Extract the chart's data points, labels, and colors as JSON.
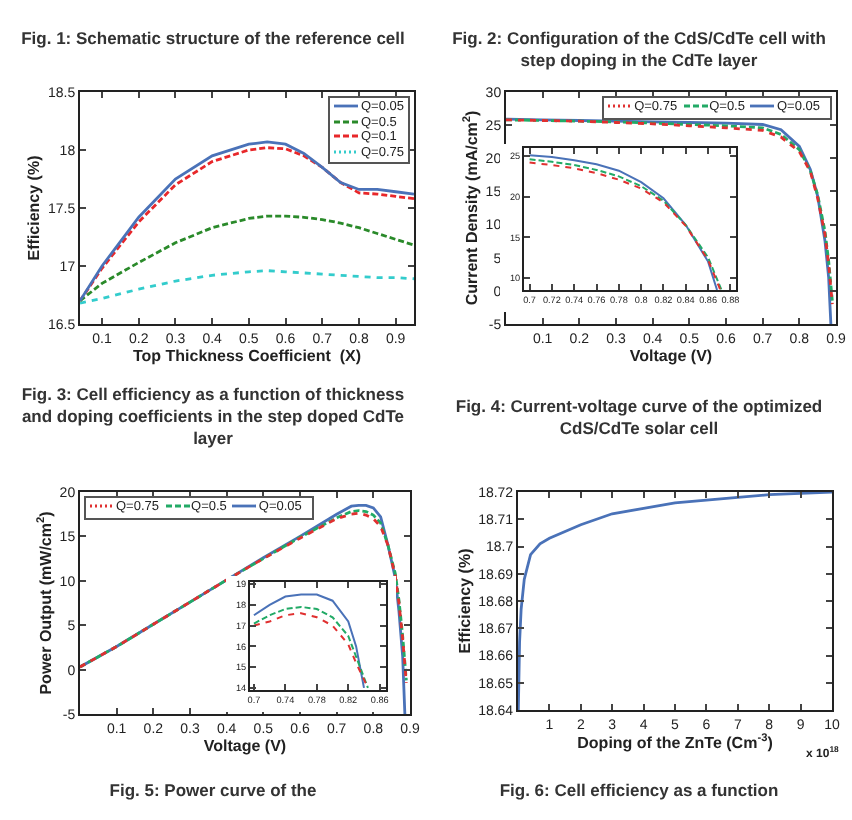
{
  "chart_data": [
    {
      "type": "other",
      "annotations": [
        "Fig. 1: Schematic structure of the reference cell",
        "Fig. 2: Configuration of the CdS/CdTe cell with step doping in the CdTe layer"
      ]
    },
    {
      "type": "line",
      "xlabel": "Top Thickness Coefficient  (X)",
      "ylabel": "Efficiency (%)",
      "xlim": [
        0.04,
        0.95
      ],
      "xticks": [
        0.1,
        0.2,
        0.3,
        0.4,
        0.5,
        0.6,
        0.7,
        0.8,
        0.9
      ],
      "ylim": [
        16.5,
        18.5
      ],
      "yticks": [
        16.5,
        17,
        17.5,
        18,
        18.5
      ],
      "legend": "top right",
      "x": [
        0.04,
        0.1,
        0.2,
        0.3,
        0.4,
        0.5,
        0.55,
        0.6,
        0.65,
        0.7,
        0.75,
        0.8,
        0.85,
        0.9,
        0.95
      ],
      "series": [
        {
          "name": "Q=0.05",
          "color": "#4a72b8",
          "line_style": "solid",
          "values": [
            16.7,
            17.0,
            17.42,
            17.75,
            17.95,
            18.05,
            18.07,
            18.05,
            17.97,
            17.85,
            17.72,
            17.66,
            17.66,
            17.64,
            17.62
          ]
        },
        {
          "name": "Q=0.5",
          "color": "#2a8a2a",
          "line_style": "dashed",
          "values": [
            16.7,
            16.85,
            17.03,
            17.2,
            17.33,
            17.41,
            17.43,
            17.43,
            17.42,
            17.4,
            17.37,
            17.33,
            17.28,
            17.23,
            17.18
          ]
        },
        {
          "name": "Q=0.1",
          "color": "#e8272a",
          "line_style": "dashed",
          "values": [
            16.7,
            16.98,
            17.38,
            17.7,
            17.9,
            18.0,
            18.02,
            18.01,
            17.95,
            17.85,
            17.72,
            17.63,
            17.62,
            17.6,
            17.58
          ]
        },
        {
          "name": "Q=0.75",
          "color": "#33cccc",
          "line_style": "dotted",
          "values": [
            16.68,
            16.72,
            16.8,
            16.87,
            16.92,
            16.95,
            16.96,
            16.95,
            16.94,
            16.93,
            16.92,
            16.91,
            16.9,
            16.9,
            16.89
          ]
        }
      ],
      "annotations": [
        "Fig. 3: Cell efficiency as a function of thickness and doping coefficients in the step doped CdTe layer"
      ]
    },
    {
      "type": "line",
      "xlabel": "Voltage (V)",
      "ylabel": "Current Density (mA/cm$^{2}$)",
      "xlim": [
        0,
        0.9
      ],
      "xticks": [
        0.1,
        0.2,
        0.3,
        0.4,
        0.5,
        0.6,
        0.7,
        0.8,
        0.9
      ],
      "ylim": [
        -5,
        30
      ],
      "yticks": [
        -5,
        0,
        5,
        10,
        15,
        20,
        25,
        30
      ],
      "legend": "top right",
      "series": [
        {
          "name": "Q=0.75",
          "color": "#e03030",
          "line_style": "dotted",
          "x": [
            0,
            0.1,
            0.2,
            0.3,
            0.4,
            0.5,
            0.6,
            0.7,
            0.75,
            0.8,
            0.83,
            0.85,
            0.87,
            0.88,
            0.89
          ],
          "values": [
            25.8,
            25.7,
            25.6,
            25.4,
            25.2,
            24.9,
            24.6,
            24.2,
            23.2,
            21.0,
            18.0,
            14.0,
            8.5,
            4.0,
            -2
          ]
        },
        {
          "name": "Q=0.5",
          "color": "#22aa66",
          "line_style": "dashed",
          "x": [
            0,
            0.1,
            0.2,
            0.3,
            0.4,
            0.5,
            0.6,
            0.7,
            0.75,
            0.8,
            0.83,
            0.85,
            0.87,
            0.88,
            0.89
          ],
          "values": [
            25.8,
            25.7,
            25.6,
            25.5,
            25.3,
            25.1,
            24.9,
            24.6,
            23.6,
            21.3,
            18.1,
            14.5,
            9.0,
            4.5,
            -1.5
          ]
        },
        {
          "name": "Q=0.05",
          "color": "#4a72b8",
          "line_style": "solid",
          "x": [
            0,
            0.1,
            0.2,
            0.3,
            0.4,
            0.5,
            0.6,
            0.7,
            0.75,
            0.8,
            0.83,
            0.85,
            0.87,
            0.88,
            0.886
          ],
          "values": [
            25.9,
            25.8,
            25.7,
            25.6,
            25.5,
            25.4,
            25.3,
            25.1,
            24.3,
            21.8,
            18.3,
            14.3,
            7.5,
            2.0,
            -5
          ]
        }
      ],
      "annotations": [
        "Fig. 4: Current-voltage curve of the optimized CdS/CdTe solar cell"
      ]
    },
    {
      "type": "line",
      "xlim": [
        0.695,
        0.885
      ],
      "xticks": [
        0.7,
        0.72,
        0.74,
        0.76,
        0.78,
        0.8,
        0.82,
        0.84,
        0.86,
        0.88
      ],
      "ylim": [
        8.5,
        26
      ],
      "yticks": [
        10,
        15,
        20,
        25
      ],
      "series": [
        {
          "color": "#e03030",
          "line_style": "dotted",
          "x": [
            0.7,
            0.72,
            0.74,
            0.76,
            0.78,
            0.8,
            0.82,
            0.84,
            0.86,
            0.871
          ],
          "values": [
            24.2,
            23.9,
            23.5,
            22.9,
            22.1,
            21.0,
            19.3,
            16.4,
            12.2,
            8.5
          ]
        },
        {
          "color": "#22aa66",
          "line_style": "dashed",
          "x": [
            0.7,
            0.72,
            0.74,
            0.76,
            0.78,
            0.8,
            0.82,
            0.84,
            0.86,
            0.872
          ],
          "values": [
            24.6,
            24.3,
            23.9,
            23.3,
            22.5,
            21.3,
            19.5,
            16.5,
            12.5,
            8.5
          ]
        },
        {
          "color": "#4a72b8",
          "line_style": "solid",
          "x": [
            0.7,
            0.72,
            0.74,
            0.76,
            0.78,
            0.8,
            0.82,
            0.84,
            0.86,
            0.868
          ],
          "values": [
            25.1,
            24.9,
            24.5,
            24.0,
            23.2,
            21.8,
            19.8,
            16.5,
            12.0,
            8.5
          ]
        }
      ]
    },
    {
      "type": "line",
      "xlabel": "Voltage (V)",
      "ylabel": "Power Output (mW/cm$^{2}$)",
      "xlim": [
        0,
        0.9
      ],
      "xticks": [
        0.1,
        0.2,
        0.3,
        0.4,
        0.5,
        0.6,
        0.7,
        0.8,
        0.9
      ],
      "ylim": [
        -5,
        20
      ],
      "yticks": [
        -5,
        0,
        5,
        10,
        15,
        20
      ],
      "legend": "top left",
      "series": [
        {
          "name": "Q=0.75",
          "color": "#e03030",
          "line_style": "dotted",
          "x": [
            0,
            0.1,
            0.2,
            0.3,
            0.4,
            0.5,
            0.6,
            0.7,
            0.74,
            0.76,
            0.78,
            0.8,
            0.82,
            0.84,
            0.86,
            0.87,
            0.88,
            0.89
          ],
          "values": [
            0.3,
            2.6,
            5.1,
            7.6,
            10.1,
            12.5,
            14.8,
            17.0,
            17.5,
            17.6,
            17.4,
            17.0,
            16.1,
            14.0,
            10.5,
            7.5,
            3.5,
            -1.5
          ]
        },
        {
          "name": "Q=0.5",
          "color": "#22aa66",
          "line_style": "dashed",
          "x": [
            0,
            0.1,
            0.2,
            0.3,
            0.4,
            0.5,
            0.6,
            0.7,
            0.74,
            0.76,
            0.78,
            0.8,
            0.82,
            0.84,
            0.86,
            0.87,
            0.88,
            0.89
          ],
          "values": [
            0.3,
            2.6,
            5.1,
            7.6,
            10.1,
            12.5,
            14.9,
            17.1,
            17.8,
            17.9,
            17.8,
            17.4,
            16.5,
            14.0,
            10.8,
            7.8,
            3.8,
            -1.2
          ]
        },
        {
          "name": "Q=0.05",
          "color": "#4a72b8",
          "line_style": "solid",
          "x": [
            0,
            0.1,
            0.2,
            0.3,
            0.4,
            0.5,
            0.6,
            0.7,
            0.74,
            0.76,
            0.78,
            0.8,
            0.82,
            0.84,
            0.86,
            0.87,
            0.88,
            0.886
          ],
          "values": [
            0.3,
            2.6,
            5.1,
            7.6,
            10.1,
            12.6,
            15.0,
            17.5,
            18.4,
            18.5,
            18.5,
            18.2,
            17.2,
            14.0,
            10.3,
            6.5,
            1.5,
            -5
          ]
        }
      ],
      "annotations": [
        "Fig. 5: Power curve of the"
      ]
    },
    {
      "type": "line",
      "xlim": [
        0.695,
        0.868
      ],
      "xticks": [
        0.7,
        0.74,
        0.78,
        0.82,
        0.86
      ],
      "ylim": [
        13.9,
        19.1
      ],
      "yticks": [
        14,
        15,
        16,
        17,
        18,
        19
      ],
      "series": [
        {
          "color": "#e03030",
          "line_style": "dotted",
          "x": [
            0.7,
            0.72,
            0.74,
            0.76,
            0.78,
            0.8,
            0.82,
            0.83,
            0.845
          ],
          "values": [
            17.0,
            17.2,
            17.5,
            17.6,
            17.4,
            17.0,
            16.1,
            15.2,
            14
          ]
        },
        {
          "color": "#22aa66",
          "line_style": "dashed",
          "x": [
            0.7,
            0.72,
            0.74,
            0.76,
            0.78,
            0.8,
            0.82,
            0.83,
            0.845
          ],
          "values": [
            17.1,
            17.5,
            17.8,
            17.9,
            17.8,
            17.4,
            16.5,
            15.5,
            14
          ]
        },
        {
          "color": "#4a72b8",
          "line_style": "solid",
          "x": [
            0.7,
            0.72,
            0.74,
            0.76,
            0.78,
            0.8,
            0.82,
            0.83,
            0.84
          ],
          "values": [
            17.5,
            18.0,
            18.4,
            18.5,
            18.5,
            18.2,
            17.2,
            16.0,
            14.0
          ]
        }
      ]
    },
    {
      "type": "line",
      "xlabel": "Doping of the ZnTe (Cm$^{-3}$)",
      "ylabel": "Efficiency (%)",
      "xlim": [
        0,
        10
      ],
      "xticks": [
        1,
        2,
        3,
        4,
        5,
        6,
        7,
        8,
        9,
        10
      ],
      "ylim": [
        18.64,
        18.72
      ],
      "yticks": [
        18.64,
        18.65,
        18.66,
        18.67,
        18.68,
        18.69,
        18.7,
        18.71,
        18.72
      ],
      "x": [
        0.01,
        0.05,
        0.1,
        0.2,
        0.4,
        0.7,
        1,
        2,
        3,
        4,
        5,
        6,
        7,
        8,
        9,
        10
      ],
      "series": [
        {
          "color": "#4a72b8",
          "line_style": "solid",
          "values": [
            18.64,
            18.665,
            18.677,
            18.688,
            18.697,
            18.701,
            18.703,
            18.708,
            18.712,
            18.714,
            18.716,
            18.717,
            18.718,
            18.719,
            18.7195,
            18.72
          ]
        }
      ],
      "annotations": [
        "x 10$^{18}$",
        "Fig. 6: Cell efficiency as a function"
      ]
    }
  ]
}
